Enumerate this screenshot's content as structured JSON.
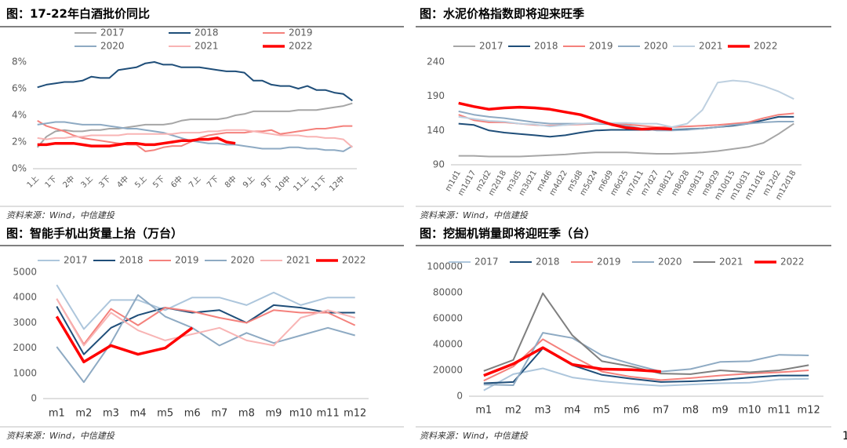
{
  "chart_data": [
    {
      "type": "line",
      "title": "图：17-22年白酒批价同比",
      "source": "资料来源：Wind，中信建投",
      "categories": [
        "1上",
        null,
        "1下",
        null,
        "2中",
        null,
        "3上",
        null,
        "3下",
        null,
        "4中",
        null,
        "5上",
        null,
        "5下",
        null,
        "6中",
        null,
        "7上",
        null,
        "7下",
        null,
        "8中",
        null,
        "9上",
        null,
        "9下",
        null,
        "10中",
        null,
        "11上",
        null,
        "11下",
        null,
        "12中",
        null
      ],
      "ylim": [
        0,
        8
      ],
      "yticks": [
        {
          "value": 0,
          "label": "0%"
        },
        {
          "value": 2,
          "label": "2%"
        },
        {
          "value": 4,
          "label": "4%"
        },
        {
          "value": 6,
          "label": "6%"
        },
        {
          "value": 8,
          "label": "8%"
        }
      ],
      "series": [
        {
          "name": "2017",
          "color": "#a6a6a6",
          "values": [
            1.6,
            2.4,
            2.8,
            2.9,
            2.8,
            2.8,
            2.9,
            2.9,
            3.0,
            3.0,
            3.1,
            3.2,
            3.3,
            3.3,
            3.3,
            3.4,
            3.6,
            3.7,
            3.7,
            3.7,
            3.7,
            3.8,
            4.0,
            4.1,
            4.3,
            4.3,
            4.3,
            4.3,
            4.3,
            4.4,
            4.4,
            4.4,
            4.5,
            4.6,
            4.7,
            4.9
          ]
        },
        {
          "name": "2018",
          "color": "#1f4e79",
          "values": [
            6.1,
            6.3,
            6.4,
            6.5,
            6.5,
            6.6,
            6.9,
            6.8,
            6.8,
            7.4,
            7.5,
            7.6,
            7.9,
            8.0,
            7.8,
            7.8,
            7.6,
            7.6,
            7.6,
            7.5,
            7.4,
            7.3,
            7.3,
            7.2,
            6.6,
            6.6,
            6.3,
            6.2,
            6.2,
            6.0,
            6.2,
            5.9,
            5.9,
            5.7,
            5.6,
            5.1
          ]
        },
        {
          "name": "2019",
          "color": "#f4817c",
          "values": [
            3.6,
            3.2,
            3.0,
            2.8,
            2.5,
            2.3,
            2.2,
            2.1,
            2.0,
            1.9,
            1.8,
            1.8,
            1.3,
            1.4,
            1.6,
            1.7,
            1.7,
            2.0,
            2.3,
            2.5,
            2.6,
            2.7,
            2.7,
            2.7,
            2.8,
            2.8,
            2.9,
            2.6,
            2.7,
            2.8,
            2.9,
            3.0,
            3.0,
            3.1,
            3.2,
            3.2
          ]
        },
        {
          "name": "2020",
          "color": "#8eaac3",
          "values": [
            3.3,
            3.4,
            3.5,
            3.5,
            3.4,
            3.3,
            3.3,
            3.3,
            3.2,
            3.1,
            3.0,
            3.0,
            2.9,
            2.8,
            2.7,
            2.5,
            2.3,
            2.1,
            2.0,
            1.9,
            1.9,
            1.8,
            1.8,
            1.7,
            1.6,
            1.5,
            1.5,
            1.5,
            1.6,
            1.6,
            1.5,
            1.5,
            1.4,
            1.4,
            1.3,
            1.7
          ]
        },
        {
          "name": "2021",
          "color": "#f8b4b4",
          "values": [
            2.3,
            2.2,
            2.3,
            2.3,
            2.4,
            2.4,
            2.5,
            2.5,
            2.5,
            2.5,
            2.6,
            2.6,
            2.6,
            2.6,
            2.6,
            2.6,
            2.7,
            2.7,
            2.7,
            2.8,
            2.8,
            2.9,
            2.9,
            2.9,
            2.8,
            2.7,
            2.6,
            2.5,
            2.5,
            2.5,
            2.4,
            2.4,
            2.3,
            2.3,
            2.2,
            1.6
          ]
        },
        {
          "name": "2022",
          "color": "#ff0000",
          "emphasis": true,
          "values": [
            1.8,
            1.8,
            1.9,
            1.9,
            1.9,
            1.8,
            1.7,
            1.7,
            1.7,
            1.8,
            1.9,
            1.9,
            1.8,
            1.8,
            1.9,
            2.0,
            2.1,
            2.1,
            2.2,
            2.2,
            2.3,
            2.0,
            1.9,
            null,
            null,
            null,
            null,
            null,
            null,
            null,
            null,
            null,
            null,
            null,
            null,
            null
          ]
        }
      ]
    },
    {
      "type": "line",
      "title": "图：水泥价格指数即将迎来旺季",
      "source": "资料来源：Wind，中信建投",
      "categories": [
        "m1d1",
        "m1d17",
        "m2d2",
        "m2d18",
        "m3d5",
        "m3d21",
        "m4d6",
        "m4d22",
        "m5d8",
        "m5d24",
        "m6d9",
        "m6d25",
        "m7d11",
        "m7d27",
        "m8d12",
        "m8d28",
        "m9d13",
        "m9d29",
        "m10d15",
        "m10d31",
        "m11d16",
        "m12d2",
        "m12d18"
      ],
      "ylim": [
        90,
        240
      ],
      "yticks": [
        90,
        140,
        190,
        240
      ],
      "series": [
        {
          "name": "2017",
          "color": "#a6a6a6",
          "values": [
            103,
            103,
            102,
            102,
            102,
            103,
            104,
            105,
            107,
            108,
            108,
            108,
            107,
            106,
            106,
            107,
            108,
            110,
            113,
            116,
            122,
            135,
            150
          ]
        },
        {
          "name": "2018",
          "color": "#1f4e79",
          "values": [
            150,
            148,
            140,
            137,
            135,
            133,
            131,
            133,
            137,
            140,
            141,
            141,
            141,
            141,
            141,
            142,
            143,
            145,
            147,
            150,
            155,
            160,
            160
          ]
        },
        {
          "name": "2019",
          "color": "#f4817c",
          "values": [
            163,
            155,
            152,
            152,
            150,
            148,
            147,
            148,
            149,
            150,
            150,
            149,
            147,
            145,
            145,
            146,
            147,
            148,
            150,
            152,
            158,
            163,
            165
          ]
        },
        {
          "name": "2020",
          "color": "#8eaac3",
          "values": [
            168,
            163,
            160,
            158,
            155,
            152,
            150,
            150,
            150,
            150,
            149,
            147,
            143,
            140,
            140,
            141,
            143,
            145,
            148,
            150,
            152,
            153,
            153
          ]
        },
        {
          "name": "2021",
          "color": "#bed0e0",
          "values": [
            160,
            157,
            154,
            153,
            150,
            149,
            146,
            148,
            150,
            151,
            151,
            151,
            150,
            150,
            145,
            150,
            170,
            210,
            213,
            211,
            205,
            197,
            186
          ]
        },
        {
          "name": "2022",
          "color": "#ff0000",
          "emphasis": true,
          "values": [
            180,
            175,
            171,
            173,
            174,
            173,
            171,
            167,
            163,
            156,
            149,
            144,
            142,
            143,
            142,
            null,
            null,
            null,
            null,
            null,
            null,
            null,
            null
          ]
        }
      ]
    },
    {
      "type": "line",
      "title": "图：智能手机出货量上抬（万台）",
      "source": "资料来源：Wind，中信建投",
      "categories": [
        "m1",
        "m2",
        "m3",
        "m4",
        "m5",
        "m6",
        "m7",
        "m8",
        "m9",
        "m10",
        "m11",
        "m12"
      ],
      "ylim": [
        0,
        5000
      ],
      "yticks": [
        0,
        1000,
        2000,
        3000,
        4000,
        5000
      ],
      "series": [
        {
          "name": "2017",
          "color": "#adc6dc",
          "values": [
            4500,
            2750,
            3900,
            3900,
            3500,
            4000,
            4000,
            3700,
            4200,
            3700,
            4000,
            4000
          ]
        },
        {
          "name": "2018",
          "color": "#1f4e79",
          "values": [
            3650,
            1750,
            2800,
            3300,
            3600,
            3400,
            3500,
            3000,
            3700,
            3600,
            3400,
            3400
          ]
        },
        {
          "name": "2019",
          "color": "#f4817c",
          "values": [
            3950,
            2150,
            3550,
            2900,
            3600,
            3450,
            3200,
            3000,
            3500,
            3400,
            3400,
            2900
          ]
        },
        {
          "name": "2020",
          "color": "#8eaac3",
          "values": [
            2050,
            650,
            2200,
            4100,
            3250,
            2800,
            2100,
            2600,
            2200,
            2500,
            2800,
            2500
          ]
        },
        {
          "name": "2021",
          "color": "#f8b4b4",
          "values": [
            3950,
            2100,
            3400,
            2700,
            2300,
            2550,
            2800,
            2300,
            2100,
            3200,
            3500,
            3200
          ]
        },
        {
          "name": "2022",
          "color": "#ff0000",
          "emphasis": true,
          "values": [
            3250,
            1450,
            2100,
            1750,
            2000,
            2800,
            null,
            null,
            null,
            null,
            null,
            null
          ]
        }
      ]
    },
    {
      "type": "line",
      "title": "图：挖掘机销量即将迎旺季（台）",
      "source": "资料来源：Wind，中信建投",
      "categories": [
        "m1",
        "m2",
        "m3",
        "m4",
        "m5",
        "m6",
        "m7",
        "m8",
        "m9",
        "m10",
        "m11",
        "m12"
      ],
      "ylim": [
        0,
        100000
      ],
      "yticks": [
        0,
        20000,
        40000,
        60000,
        80000,
        100000
      ],
      "series": [
        {
          "name": "2017",
          "color": "#adc6dc",
          "values": [
            4500,
            17000,
            21500,
            14500,
            11500,
            9500,
            8000,
            9000,
            10000,
            10500,
            13000,
            13500
          ]
        },
        {
          "name": "2018",
          "color": "#1f4e79",
          "values": [
            10000,
            11000,
            37000,
            24000,
            16500,
            13500,
            11000,
            11500,
            12500,
            14500,
            16000,
            16000
          ]
        },
        {
          "name": "2019",
          "color": "#f4817c",
          "values": [
            12000,
            23000,
            44000,
            31000,
            19000,
            15000,
            12500,
            14000,
            16000,
            17500,
            18500,
            20000
          ]
        },
        {
          "name": "2020",
          "color": "#8eaac3",
          "values": [
            9000,
            8500,
            49000,
            45000,
            31500,
            25000,
            19000,
            21000,
            26500,
            27000,
            32000,
            31500
          ]
        },
        {
          "name": "2021",
          "color": "#7f7f7f",
          "values": [
            19500,
            28000,
            79500,
            47000,
            27000,
            23000,
            17500,
            17000,
            20000,
            18500,
            20000,
            24000
          ]
        },
        {
          "name": "2022",
          "color": "#ff0000",
          "emphasis": true,
          "values": [
            16000,
            25000,
            37500,
            24500,
            21000,
            20500,
            19000,
            null,
            null,
            null,
            null,
            null
          ]
        }
      ]
    }
  ],
  "page_number": "1"
}
